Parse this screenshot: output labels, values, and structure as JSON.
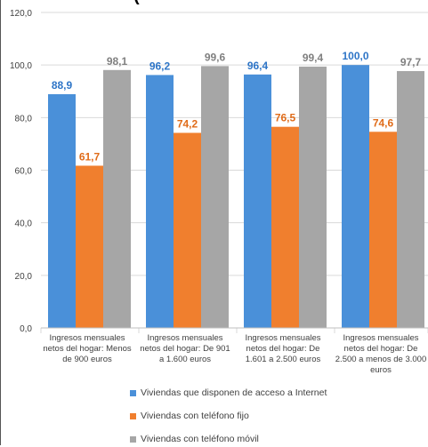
{
  "chart_data": {
    "type": "bar",
    "title_fragment": "(",
    "categories": [
      "Ingresos mensuales netos del hogar: Menos de 900 euros",
      "Ingresos mensuales netos del hogar: De 901 a 1.600 euros",
      "Ingresos mensuales netos del hogar: De 1.601 a 2.500 euros",
      "Ingresos mensuales netos del hogar: De 2.500 a menos de 3.000 euros"
    ],
    "series": [
      {
        "name": "Viviendas que disponen de acceso a Internet",
        "values": [
          88.9,
          96.2,
          96.4,
          100.0
        ],
        "color": "#4a90d9",
        "label_color": "#2e75c7"
      },
      {
        "name": "Viviendas con  teléfono fijo",
        "values": [
          61.7,
          74.2,
          76.5,
          74.6
        ],
        "color": "#f07f2e",
        "label_color": "#e06c1a"
      },
      {
        "name": "Viviendas con  teléfono móvil",
        "values": [
          98.1,
          99.6,
          99.4,
          97.7
        ],
        "color": "#a6a6a6",
        "label_color": "#808080"
      }
    ],
    "value_labels": [
      [
        "88,9",
        "96,2",
        "96,4",
        "100,0"
      ],
      [
        "61,7",
        "74,2",
        "76,5",
        "74,6"
      ],
      [
        "98,1",
        "99,6",
        "99,4",
        "97,7"
      ]
    ],
    "yticks": [
      "0,0",
      "20,0",
      "40,0",
      "60,0",
      "80,0",
      "100,0",
      "120,0"
    ],
    "ytick_values": [
      0,
      20,
      40,
      60,
      80,
      100,
      120
    ],
    "ylim": [
      0,
      120
    ],
    "grid": true,
    "legend_position": "bottom"
  }
}
